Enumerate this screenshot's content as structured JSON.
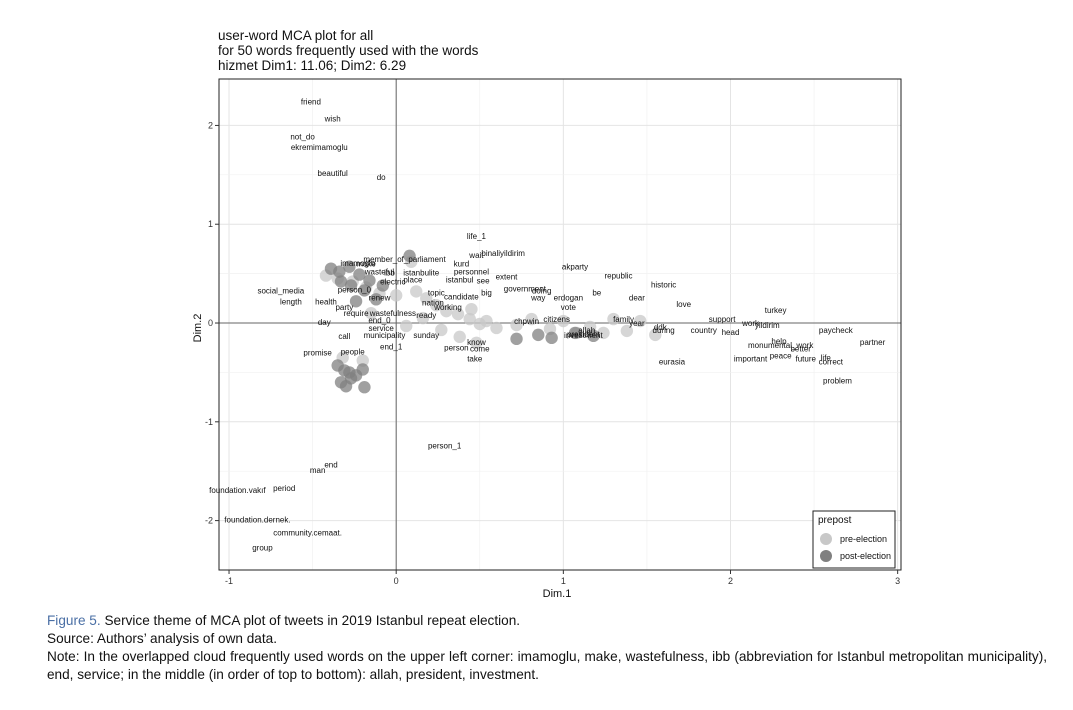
{
  "figure": {
    "label": "Figure 5.",
    "caption": "Service theme of MCA plot of tweets in 2019 Istanbul repeat election.",
    "source": "Source: Authors’ analysis of own data.",
    "note": "Note: In the overlapped cloud frequently used words on the upper left corner: imamoglu, make, wastefulness, ibb (abbreviation for Istanbul metropolitan municipality), end, service; in the middle (in order of top to bottom): allah, president, investment."
  },
  "chart_data": {
    "type": "scatter",
    "title_lines": [
      "user-word MCA plot for all",
      "for 50 words frequently used with the words",
      "hizmet Dim1: 11.06; Dim2: 6.29"
    ],
    "xlabel": "Dim.1",
    "ylabel": "Dim.2",
    "xlim": [
      -1.06,
      3.02
    ],
    "ylim": [
      -2.5,
      2.47
    ],
    "x_ticks": [
      -1,
      0,
      1,
      2,
      3
    ],
    "y_ticks": [
      -2,
      -1,
      0,
      1,
      2
    ],
    "grid": true,
    "legend": {
      "title": "prepost",
      "position": "bottom-right",
      "entries": [
        {
          "label": "pre-election",
          "color": "#c8c8c8"
        },
        {
          "label": "post-election",
          "color": "#808080"
        }
      ]
    },
    "words": [
      {
        "text": "friend",
        "x": -0.51,
        "y": 2.24
      },
      {
        "text": "wish",
        "x": -0.38,
        "y": 2.07
      },
      {
        "text": "not_do",
        "x": -0.56,
        "y": 1.89
      },
      {
        "text": "ekremimamoglu",
        "x": -0.46,
        "y": 1.78
      },
      {
        "text": "beautiful",
        "x": -0.38,
        "y": 1.52
      },
      {
        "text": "do",
        "x": -0.09,
        "y": 1.48
      },
      {
        "text": "life_1",
        "x": 0.48,
        "y": 0.88
      },
      {
        "text": "binaliyildirim",
        "x": 0.64,
        "y": 0.71
      },
      {
        "text": "wait",
        "x": 0.48,
        "y": 0.69
      },
      {
        "text": "imamoglu",
        "x": -0.23,
        "y": 0.61
      },
      {
        "text": "member_of_parliament",
        "x": 0.05,
        "y": 0.65
      },
      {
        "text": "make",
        "x": -0.18,
        "y": 0.6
      },
      {
        "text": "kurd",
        "x": 0.39,
        "y": 0.6
      },
      {
        "text": "akparty",
        "x": 1.07,
        "y": 0.57
      },
      {
        "text": "wasteful",
        "x": -0.1,
        "y": 0.52
      },
      {
        "text": "ibb",
        "x": -0.04,
        "y": 0.51
      },
      {
        "text": "istanbulite",
        "x": 0.15,
        "y": 0.51
      },
      {
        "text": "personnel",
        "x": 0.45,
        "y": 0.52
      },
      {
        "text": "extent",
        "x": 0.66,
        "y": 0.47
      },
      {
        "text": "republic",
        "x": 1.33,
        "y": 0.48
      },
      {
        "text": "electric",
        "x": -0.02,
        "y": 0.42
      },
      {
        "text": "place",
        "x": 0.1,
        "y": 0.44
      },
      {
        "text": "istanbul",
        "x": 0.38,
        "y": 0.44
      },
      {
        "text": "see",
        "x": 0.52,
        "y": 0.43
      },
      {
        "text": "historic",
        "x": 1.6,
        "y": 0.39
      },
      {
        "text": "social_media",
        "x": -0.69,
        "y": 0.33
      },
      {
        "text": "person_0",
        "x": -0.25,
        "y": 0.34
      },
      {
        "text": "topic",
        "x": 0.24,
        "y": 0.31
      },
      {
        "text": "big",
        "x": 0.54,
        "y": 0.31
      },
      {
        "text": "government",
        "x": 0.77,
        "y": 0.35
      },
      {
        "text": "doing",
        "x": 0.87,
        "y": 0.33
      },
      {
        "text": "be",
        "x": 1.2,
        "y": 0.31
      },
      {
        "text": "dear",
        "x": 1.44,
        "y": 0.26
      },
      {
        "text": "way",
        "x": 0.85,
        "y": 0.26
      },
      {
        "text": "erdogan",
        "x": 1.03,
        "y": 0.26
      },
      {
        "text": "candidate",
        "x": 0.39,
        "y": 0.27
      },
      {
        "text": "renew",
        "x": -0.1,
        "y": 0.26
      },
      {
        "text": "length",
        "x": -0.63,
        "y": 0.22
      },
      {
        "text": "health",
        "x": -0.42,
        "y": 0.22
      },
      {
        "text": "nation",
        "x": 0.22,
        "y": 0.21
      },
      {
        "text": "love",
        "x": 1.72,
        "y": 0.19
      },
      {
        "text": "party",
        "x": -0.31,
        "y": 0.16
      },
      {
        "text": "vote",
        "x": 1.03,
        "y": 0.16
      },
      {
        "text": "working",
        "x": 0.31,
        "y": 0.16
      },
      {
        "text": "turkey",
        "x": 2.27,
        "y": 0.13
      },
      {
        "text": "require",
        "x": -0.24,
        "y": 0.1
      },
      {
        "text": "wastefulness",
        "x": -0.02,
        "y": 0.1
      },
      {
        "text": "ready",
        "x": 0.18,
        "y": 0.08
      },
      {
        "text": "citizens",
        "x": 0.96,
        "y": 0.04
      },
      {
        "text": "family",
        "x": 1.36,
        "y": 0.04
      },
      {
        "text": "support",
        "x": 1.95,
        "y": 0.04
      },
      {
        "text": "day",
        "x": -0.43,
        "y": 0.01
      },
      {
        "text": "end_0",
        "x": -0.1,
        "y": 0.03
      },
      {
        "text": "chpwin",
        "x": 0.78,
        "y": 0.02
      },
      {
        "text": "year",
        "x": 1.44,
        "y": 0.0
      },
      {
        "text": "work",
        "x": 2.12,
        "y": 0.0
      },
      {
        "text": "yildirim",
        "x": 2.22,
        "y": -0.02
      },
      {
        "text": "service",
        "x": -0.09,
        "y": -0.05
      },
      {
        "text": "ddk",
        "x": 1.58,
        "y": -0.04
      },
      {
        "text": "during",
        "x": 1.6,
        "y": -0.07
      },
      {
        "text": "country",
        "x": 1.84,
        "y": -0.07
      },
      {
        "text": "paycheck",
        "x": 2.63,
        "y": -0.07
      },
      {
        "text": "allah",
        "x": 1.14,
        "y": -0.07
      },
      {
        "text": "head",
        "x": 2.0,
        "y": -0.09
      },
      {
        "text": "president",
        "x": 1.12,
        "y": -0.11
      },
      {
        "text": "investment",
        "x": 1.12,
        "y": -0.12
      },
      {
        "text": "call",
        "x": -0.31,
        "y": -0.13
      },
      {
        "text": "municipality",
        "x": -0.07,
        "y": -0.12
      },
      {
        "text": "sunday",
        "x": 0.18,
        "y": -0.12
      },
      {
        "text": "know",
        "x": 0.48,
        "y": -0.19
      },
      {
        "text": "partner",
        "x": 2.85,
        "y": -0.19
      },
      {
        "text": "help",
        "x": 2.29,
        "y": -0.18
      },
      {
        "text": "monumental_work",
        "x": 2.3,
        "y": -0.22
      },
      {
        "text": "end_1",
        "x": -0.03,
        "y": -0.24
      },
      {
        "text": "person",
        "x": 0.36,
        "y": -0.25
      },
      {
        "text": "come",
        "x": 0.5,
        "y": -0.26
      },
      {
        "text": "better",
        "x": 2.42,
        "y": -0.26
      },
      {
        "text": "promise",
        "x": -0.47,
        "y": -0.3
      },
      {
        "text": "people",
        "x": -0.26,
        "y": -0.29
      },
      {
        "text": "peace",
        "x": 2.3,
        "y": -0.33
      },
      {
        "text": "take",
        "x": 0.47,
        "y": -0.36
      },
      {
        "text": "important",
        "x": 2.12,
        "y": -0.36
      },
      {
        "text": "future",
        "x": 2.45,
        "y": -0.36
      },
      {
        "text": "life",
        "x": 2.57,
        "y": -0.35
      },
      {
        "text": "eurasia",
        "x": 1.65,
        "y": -0.39
      },
      {
        "text": "correct",
        "x": 2.6,
        "y": -0.39
      },
      {
        "text": "problem",
        "x": 2.64,
        "y": -0.58
      },
      {
        "text": "person_1",
        "x": 0.29,
        "y": -1.24
      },
      {
        "text": "end",
        "x": -0.39,
        "y": -1.43
      },
      {
        "text": "man",
        "x": -0.47,
        "y": -1.49
      },
      {
        "text": "period",
        "x": -0.67,
        "y": -1.67
      },
      {
        "text": "foundation.vakıf",
        "x": -0.95,
        "y": -1.69
      },
      {
        "text": "foundation.dernek.",
        "x": -0.83,
        "y": -1.99
      },
      {
        "text": "community.cemaat.",
        "x": -0.53,
        "y": -2.12
      },
      {
        "text": "group",
        "x": -0.8,
        "y": -2.27
      }
    ],
    "pre_points": [
      [
        -0.42,
        0.48
      ],
      [
        -0.35,
        0.45
      ],
      [
        -0.26,
        0.42
      ],
      [
        -0.18,
        0.36
      ],
      [
        -0.1,
        0.3
      ],
      [
        0.0,
        0.28
      ],
      [
        0.09,
        0.62
      ],
      [
        0.12,
        0.32
      ],
      [
        0.18,
        0.25
      ],
      [
        0.24,
        0.18
      ],
      [
        0.3,
        0.12
      ],
      [
        0.37,
        0.09
      ],
      [
        0.44,
        0.04
      ],
      [
        0.5,
        -0.01
      ],
      [
        0.27,
        -0.07
      ],
      [
        0.38,
        -0.14
      ],
      [
        0.48,
        -0.2
      ],
      [
        0.45,
        0.14
      ],
      [
        0.54,
        0.02
      ],
      [
        0.6,
        -0.05
      ],
      [
        0.72,
        -0.02
      ],
      [
        0.81,
        0.04
      ],
      [
        0.92,
        -0.06
      ],
      [
        1.0,
        0.02
      ],
      [
        1.08,
        -0.1
      ],
      [
        1.16,
        -0.04
      ],
      [
        1.24,
        -0.1
      ],
      [
        1.3,
        0.04
      ],
      [
        1.38,
        -0.08
      ],
      [
        1.46,
        0.02
      ],
      [
        1.55,
        -0.12
      ],
      [
        -0.32,
        -0.35
      ],
      [
        -0.2,
        -0.38
      ],
      [
        -0.15,
        0.1
      ],
      [
        0.06,
        -0.03
      ],
      [
        0.16,
        0.05
      ]
    ],
    "post_points": [
      [
        -0.39,
        0.55
      ],
      [
        -0.34,
        0.52
      ],
      [
        -0.28,
        0.57
      ],
      [
        -0.22,
        0.49
      ],
      [
        -0.16,
        0.43
      ],
      [
        -0.33,
        0.42
      ],
      [
        -0.27,
        0.38
      ],
      [
        -0.19,
        0.33
      ],
      [
        -0.12,
        0.24
      ],
      [
        -0.24,
        0.22
      ],
      [
        -0.08,
        0.38
      ],
      [
        -0.31,
        -0.48
      ],
      [
        -0.27,
        -0.56
      ],
      [
        -0.33,
        -0.6
      ],
      [
        -0.24,
        -0.53
      ],
      [
        -0.3,
        -0.64
      ],
      [
        -0.2,
        -0.47
      ],
      [
        -0.19,
        -0.65
      ],
      [
        -0.35,
        -0.43
      ],
      [
        -0.28,
        -0.5
      ],
      [
        0.08,
        0.68
      ],
      [
        0.85,
        -0.12
      ],
      [
        0.93,
        -0.15
      ],
      [
        1.18,
        -0.13
      ],
      [
        1.07,
        -0.1
      ],
      [
        0.72,
        -0.16
      ]
    ]
  }
}
